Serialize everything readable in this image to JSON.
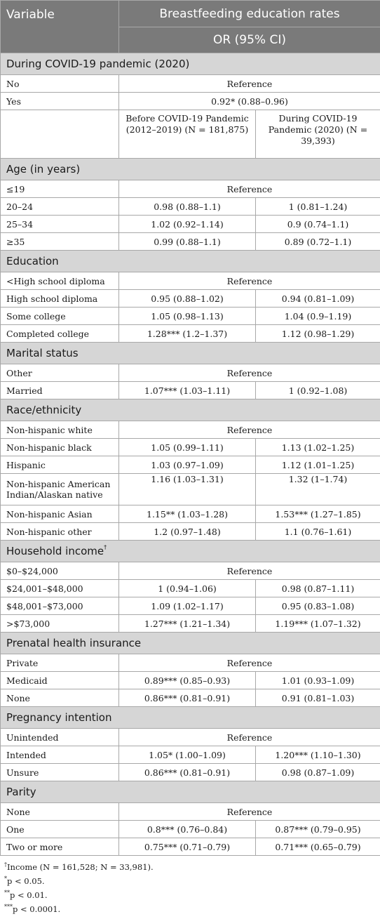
{
  "header": {
    "variable": "Variable",
    "main": "Breastfeeding education rates",
    "sub": "OR (95% CI)"
  },
  "covid": {
    "title": "During COVID-19 pandemic (2020)",
    "rows": [
      {
        "label": "No",
        "merged": "Reference"
      },
      {
        "label": "Yes",
        "merged": "0.92* (0.88–0.96)"
      }
    ],
    "period_before": "Before COVID-19 Pandemic (2012–2019) (N = 181,875)",
    "period_during": "During COVID-19 Pandemic (2020) (N = 39,393)"
  },
  "sections": [
    {
      "title": "Age (in years)",
      "rows": [
        {
          "label": "≤19",
          "merged": "Reference"
        },
        {
          "label": "20–24",
          "before": "0.98 (0.88–1.1)",
          "during": "1 (0.81–1.24)"
        },
        {
          "label": "25–34",
          "before": "1.02 (0.92–1.14)",
          "during": "0.9 (0.74–1.1)"
        },
        {
          "label": "≥35",
          "before": "0.99 (0.88–1.1)",
          "during": "0.89 (0.72–1.1)"
        }
      ]
    },
    {
      "title": "Education",
      "rows": [
        {
          "label": "<High school diploma",
          "merged": "Reference"
        },
        {
          "label": "High school diploma",
          "before": "0.95 (0.88–1.02)",
          "during": "0.94 (0.81–1.09)"
        },
        {
          "label": "Some college",
          "before": "1.05 (0.98–1.13)",
          "during": "1.04 (0.9–1.19)"
        },
        {
          "label": "Completed college",
          "before": "1.28*** (1.2–1.37)",
          "during": "1.12 (0.98–1.29)"
        }
      ]
    },
    {
      "title": "Marital status",
      "rows": [
        {
          "label": "Other",
          "merged": "Reference"
        },
        {
          "label": "Married",
          "before": "1.07*** (1.03–1.11)",
          "during": "1 (0.92–1.08)"
        }
      ]
    },
    {
      "title": "Race/ethnicity",
      "rows": [
        {
          "label": "Non-hispanic white",
          "merged": "Reference"
        },
        {
          "label": "Non-hispanic black",
          "before": "1.05 (0.99–1.11)",
          "during": "1.13 (1.02–1.25)"
        },
        {
          "label": "Hispanic",
          "before": "1.03 (0.97–1.09)",
          "during": "1.12 (1.01–1.25)"
        },
        {
          "label": "Non-hispanic American Indian/Alaskan native",
          "before": "1.16 (1.03–1.31)",
          "during": "1.32 (1–1.74)",
          "tall": true
        },
        {
          "label": "Non-hispanic Asian",
          "before": "1.15** (1.03–1.28)",
          "during": "1.53*** (1.27–1.85)"
        },
        {
          "label": "Non-hispanic other",
          "before": "1.2 (0.97–1.48)",
          "during": "1.1 (0.76–1.61)"
        }
      ]
    },
    {
      "title": "Household income",
      "title_mark": "†",
      "rows": [
        {
          "label": "$0–$24,000",
          "merged": "Reference"
        },
        {
          "label": "$24,001–$48,000",
          "before": "1 (0.94–1.06)",
          "during": "0.98 (0.87–1.11)"
        },
        {
          "label": "$48,001–$73,000",
          "before": "1.09 (1.02–1.17)",
          "during": "0.95 (0.83–1.08)"
        },
        {
          "label": ">$73,000",
          "before": "1.27*** (1.21–1.34)",
          "during": "1.19*** (1.07–1.32)"
        }
      ]
    },
    {
      "title": "Prenatal health insurance",
      "rows": [
        {
          "label": "Private",
          "merged": "Reference"
        },
        {
          "label": "Medicaid",
          "before": "0.89*** (0.85–0.93)",
          "during": "1.01 (0.93–1.09)"
        },
        {
          "label": "None",
          "before": "0.86*** (0.81–0.91)",
          "during": "0.91 (0.81–1.03)"
        }
      ]
    },
    {
      "title": "Pregnancy intention",
      "rows": [
        {
          "label": "Unintended",
          "merged": "Reference"
        },
        {
          "label": "Intended",
          "before": "1.05* (1.00–1.09)",
          "during": "1.20*** (1.10–1.30)"
        },
        {
          "label": "Unsure",
          "before": "0.86*** (0.81–0.91)",
          "during": "0.98 (0.87–1.09)"
        }
      ]
    },
    {
      "title": "Parity",
      "rows": [
        {
          "label": "None",
          "merged": "Reference"
        },
        {
          "label": "One",
          "before": "0.8*** (0.76–0.84)",
          "during": "0.87*** (0.79–0.95)"
        },
        {
          "label": "Two or more",
          "before": "0.75*** (0.71–0.79)",
          "during": "0.71*** (0.65–0.79)"
        }
      ]
    }
  ],
  "footnotes": [
    {
      "mark": "†",
      "text": "Income (N = 161,528; N = 33,981)."
    },
    {
      "mark": "*",
      "text": "p < 0.05."
    },
    {
      "mark": "**",
      "text": "p < 0.01."
    },
    {
      "mark": "***",
      "text": "p < 0.0001."
    }
  ]
}
